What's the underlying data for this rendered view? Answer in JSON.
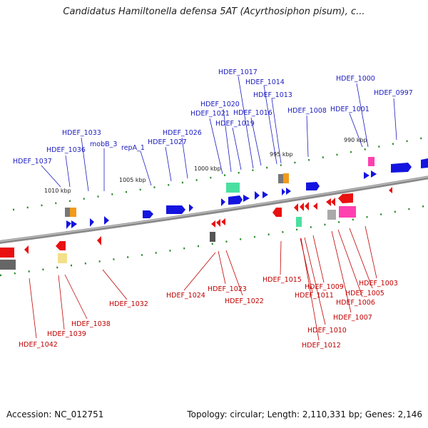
{
  "title": "Candidatus Hamiltonella defensa 5AT (Acyrthosiphon pisum), c...",
  "footer": {
    "accession": "Accession: NC_012751",
    "stats": "Topology: circular; Length: 2,110,331 bp; Genes: 2,146"
  },
  "colors": {
    "backbone": "#8a8a8a",
    "forward_gene": "#1414e0",
    "reverse_gene": "#e81010",
    "tick": "#2a8a2a"
  },
  "scale_labels": [
    "1010 kbp",
    "1005 kbp",
    "1000 kbp",
    "995 kbp",
    "990 kbp"
  ],
  "forward_labels": [
    "HDEF_1037",
    "HDEF_1036",
    "HDEF_1033",
    "mobB_3",
    "repA_1",
    "HDEF_1027",
    "HDEF_1026",
    "HDEF_1021",
    "HDEF_1020",
    "HDEF_1019",
    "HDEF_1017",
    "HDEF_1016",
    "HDEF_1014",
    "HDEF_1013",
    "HDEF_1008",
    "HDEF_1001",
    "HDEF_1000",
    "HDEF_0997"
  ],
  "reverse_labels": [
    "HDEF_1042",
    "HDEF_1039",
    "HDEF_1038",
    "HDEF_1032",
    "HDEF_1024",
    "HDEF_1023",
    "HDEF_1022",
    "HDEF_1015",
    "HDEF_1011",
    "HDEF_1012",
    "HDEF_1010",
    "HDEF_1009",
    "HDEF_1007",
    "HDEF_1006",
    "HDEF_1005",
    "HDEF_1003"
  ]
}
